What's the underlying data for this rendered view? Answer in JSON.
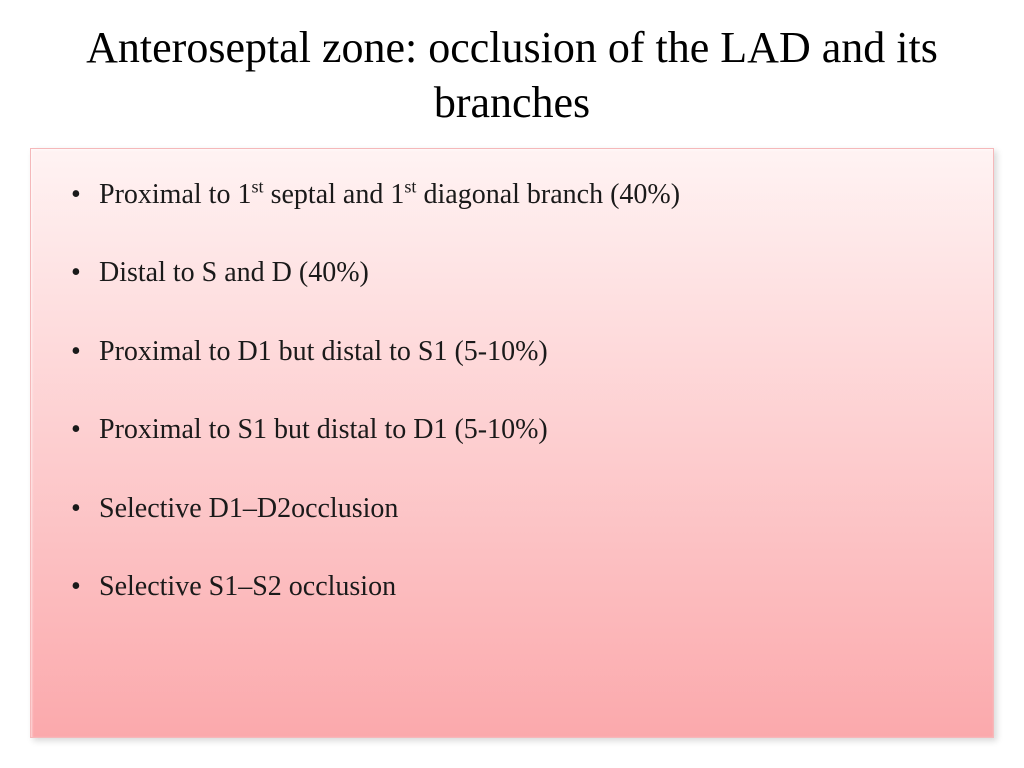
{
  "title": "Anteroseptal zone: occlusion of the LAD and its branches",
  "bullets": [
    {
      "pre": "Proximal to 1",
      "sup1": "st",
      "mid": " septal and 1",
      "sup2": "st",
      "post": "  diagonal branch (40%)",
      "hasSup": true
    },
    {
      "text": "Distal to S and D (40%)",
      "hasSup": false
    },
    {
      "text": "Proximal to D1 but distal to S1 (5-10%)",
      "hasSup": false
    },
    {
      "text": "Proximal to S1 but distal to D1 (5-10%)",
      "hasSup": false
    },
    {
      "text": "Selective D1–D2occlusion",
      "hasSup": false
    },
    {
      "text": "Selective S1–S2 occlusion",
      "hasSup": false
    }
  ],
  "style": {
    "title_color": "#000000",
    "title_fontsize": 44,
    "bullet_color": "#1a1a1a",
    "bullet_fontsize": 28,
    "box_gradient_top": "#fff3f3",
    "box_gradient_bottom": "#fba9ac",
    "box_border_color": "#f5b8ba",
    "background_color": "#ffffff"
  }
}
